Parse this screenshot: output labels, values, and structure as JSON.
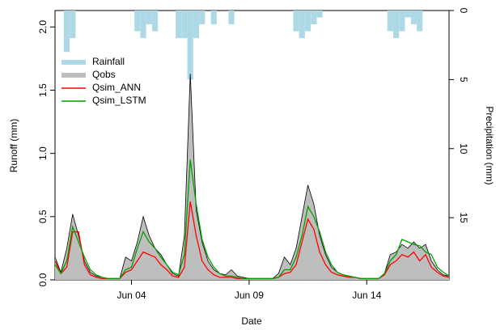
{
  "chart_data": {
    "type": "hydrograph",
    "x_label": "Date",
    "y_label": "Runoff (mm)",
    "y2_label": "Precipitation (mm)",
    "x": [
      0.75,
      1.0,
      1.25,
      1.5,
      1.75,
      2.0,
      2.25,
      2.5,
      2.75,
      3.0,
      3.25,
      3.5,
      3.75,
      4.0,
      4.25,
      4.5,
      4.75,
      5.0,
      5.25,
      5.5,
      5.75,
      6.0,
      6.25,
      6.5,
      6.75,
      7.0,
      7.25,
      7.5,
      7.75,
      8.0,
      8.25,
      8.5,
      8.75,
      9.0,
      9.25,
      9.5,
      9.75,
      10.0,
      10.25,
      10.5,
      10.75,
      11.0,
      11.25,
      11.5,
      11.75,
      12.0,
      12.25,
      12.5,
      12.75,
      13.0,
      13.25,
      13.5,
      13.75,
      14.0,
      14.25,
      14.5,
      14.75,
      15.0,
      15.25,
      15.5,
      15.75,
      16.0,
      16.25,
      16.5,
      16.75,
      17.0,
      17.25,
      17.5
    ],
    "series": [
      {
        "name": "Rainfall",
        "style": "bar",
        "axis": "y2",
        "color": "#add8e6",
        "values": [
          0,
          0,
          3,
          2,
          0,
          0,
          0,
          0,
          0,
          0,
          0,
          0,
          0,
          0,
          1.5,
          2,
          1,
          1.5,
          0,
          0,
          0,
          2,
          2,
          5,
          2,
          1,
          0,
          1,
          0,
          0,
          1,
          0,
          0,
          0,
          0,
          0,
          0,
          0,
          0,
          0,
          0,
          1.5,
          2,
          1.5,
          1,
          0.5,
          0,
          0,
          0,
          0,
          0,
          0,
          0,
          0,
          0,
          0,
          0,
          1.5,
          2,
          1.5,
          0.5,
          1,
          1.5,
          0,
          0,
          0,
          0,
          0
        ]
      },
      {
        "name": "Qobs",
        "style": "area",
        "color": "#bebebe",
        "values": [
          0.18,
          0.06,
          0.25,
          0.52,
          0.35,
          0.15,
          0.06,
          0.03,
          0.02,
          0.01,
          0.01,
          0.01,
          0.18,
          0.15,
          0.3,
          0.5,
          0.35,
          0.25,
          0.2,
          0.12,
          0.05,
          0.03,
          0.35,
          1.63,
          0.55,
          0.3,
          0.15,
          0.08,
          0.05,
          0.04,
          0.08,
          0.03,
          0.02,
          0.01,
          0.01,
          0.01,
          0.01,
          0.01,
          0.05,
          0.18,
          0.12,
          0.25,
          0.5,
          0.75,
          0.6,
          0.35,
          0.2,
          0.1,
          0.06,
          0.04,
          0.03,
          0.02,
          0.01,
          0.01,
          0.01,
          0.01,
          0.05,
          0.2,
          0.22,
          0.28,
          0.25,
          0.3,
          0.25,
          0.28,
          0.15,
          0.08,
          0.04,
          0.03
        ]
      },
      {
        "name": "Qsim_ANN",
        "style": "line",
        "color": "#ff0000",
        "values": [
          0.15,
          0.05,
          0.1,
          0.38,
          0.38,
          0.12,
          0.04,
          0.02,
          0.01,
          0.01,
          0.01,
          0.01,
          0.06,
          0.08,
          0.15,
          0.22,
          0.2,
          0.18,
          0.12,
          0.08,
          0.03,
          0.02,
          0.1,
          0.62,
          0.35,
          0.15,
          0.08,
          0.04,
          0.02,
          0.02,
          0.02,
          0.01,
          0.01,
          0.01,
          0.01,
          0.01,
          0.01,
          0.01,
          0.02,
          0.05,
          0.06,
          0.12,
          0.3,
          0.48,
          0.4,
          0.22,
          0.12,
          0.06,
          0.04,
          0.03,
          0.02,
          0.02,
          0.01,
          0.01,
          0.01,
          0.01,
          0.04,
          0.12,
          0.15,
          0.2,
          0.18,
          0.22,
          0.15,
          0.2,
          0.1,
          0.06,
          0.03,
          0.02
        ]
      },
      {
        "name": "Qsim_LSTM",
        "style": "line",
        "color": "#00a000",
        "values": [
          0.12,
          0.05,
          0.15,
          0.42,
          0.3,
          0.18,
          0.08,
          0.04,
          0.02,
          0.01,
          0.01,
          0.01,
          0.08,
          0.1,
          0.25,
          0.38,
          0.3,
          0.25,
          0.18,
          0.12,
          0.06,
          0.04,
          0.2,
          0.95,
          0.6,
          0.32,
          0.18,
          0.1,
          0.05,
          0.03,
          0.03,
          0.02,
          0.01,
          0.01,
          0.01,
          0.01,
          0.01,
          0.01,
          0.02,
          0.08,
          0.08,
          0.18,
          0.35,
          0.58,
          0.5,
          0.38,
          0.22,
          0.12,
          0.06,
          0.04,
          0.03,
          0.02,
          0.01,
          0.01,
          0.01,
          0.01,
          0.05,
          0.15,
          0.2,
          0.32,
          0.3,
          0.28,
          0.27,
          0.22,
          0.2,
          0.1,
          0.06,
          0.03
        ]
      }
    ],
    "xlim": [
      0.75,
      17.5
    ],
    "xticks": [
      {
        "value": 4,
        "label": "Jun 04"
      },
      {
        "value": 9,
        "label": "Jun 09"
      },
      {
        "value": 14,
        "label": "Jun 14"
      }
    ],
    "ylim": [
      0,
      2.13
    ],
    "yticks": [
      {
        "value": 0,
        "label": "0.0"
      },
      0.5,
      {
        "value": 1,
        "label": "1.0"
      },
      1.5,
      {
        "value": 2,
        "label": "2.0"
      }
    ],
    "y2lim": [
      0,
      19.5
    ],
    "y2_inverted": true,
    "y2ticks": [
      0,
      5,
      10,
      15
    ],
    "legend": "top-left"
  }
}
